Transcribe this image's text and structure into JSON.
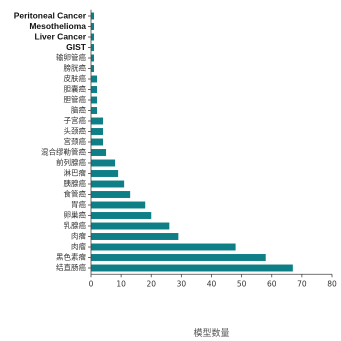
{
  "chart_data": {
    "type": "bar",
    "orientation": "horizontal",
    "xlabel": "模型数量",
    "xlim": [
      0,
      80
    ],
    "xticks": [
      0,
      10,
      20,
      30,
      40,
      50,
      60,
      70,
      80
    ],
    "grid": false,
    "bar_color": "#0e7f86",
    "categories": [
      "Peritoneal Cancer",
      "Mesothelioma",
      "Liver Cancer",
      "GIST",
      "输卵管癌",
      "膀胱癌",
      "皮肤癌",
      "胆囊癌",
      "胆管癌",
      "脑癌",
      "子宫癌",
      "头颈癌",
      "宫颈癌",
      "混合缪勒管癌",
      "前列腺癌",
      "淋巴瘤",
      "胰腺癌",
      "食管癌",
      "胃癌",
      "卵巢癌",
      "乳腺癌",
      "肉瘤",
      "肉瘤",
      "黑色素瘤",
      "结直肠癌"
    ],
    "values": [
      1,
      1,
      1,
      1,
      1,
      1,
      2,
      2,
      2,
      2,
      4,
      4,
      4,
      5,
      8,
      9,
      11,
      13,
      18,
      20,
      26,
      29,
      48,
      58,
      67
    ],
    "bold_categories": [
      "Peritoneal Cancer",
      "Mesothelioma",
      "Liver Cancer",
      "GIST"
    ]
  }
}
